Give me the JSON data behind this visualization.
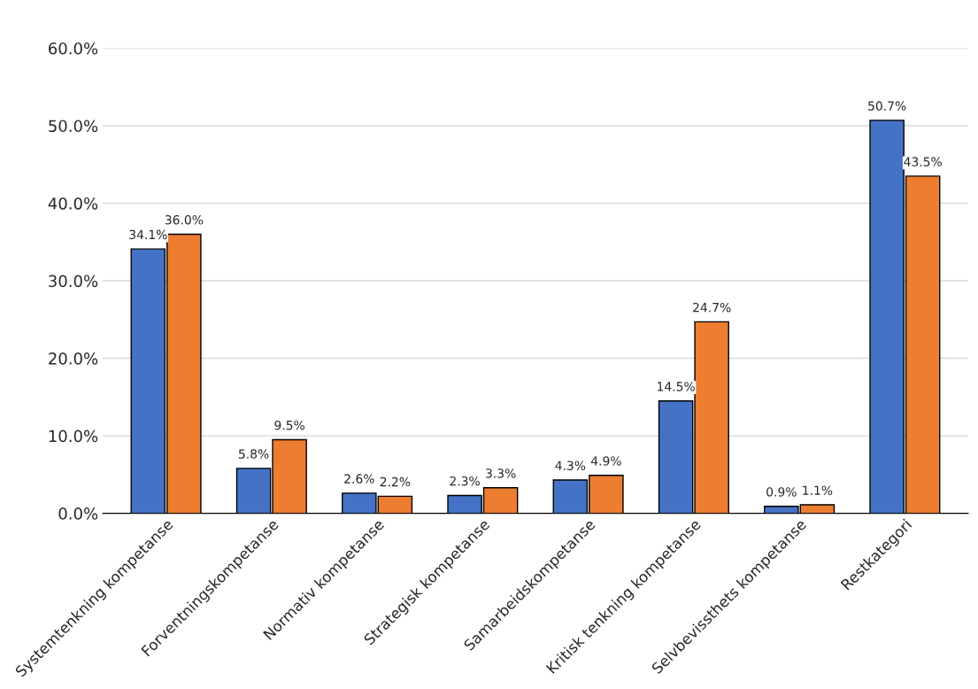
{
  "chart_data": {
    "type": "bar",
    "categories": [
      "Systemtenkning kompetanse",
      "Forventningskompetanse",
      "Normativ kompetanse",
      "Strategisk kompetanse",
      "Samarbeidskompetanse",
      "Kritisk tenkning kompetanse",
      "Selvbevissthets kompetanse",
      "Restkategori"
    ],
    "series": [
      {
        "color": "#4472c4",
        "values": [
          34.1,
          5.8,
          2.6,
          2.3,
          4.3,
          14.5,
          0.9,
          50.7
        ],
        "value_labels": [
          "34.1%",
          "5.8%",
          "2.6%",
          "2.3%",
          "4.3%",
          "14.5%",
          "0.9%",
          "50.7%"
        ]
      },
      {
        "color": "#ed7d31",
        "values": [
          36.0,
          9.5,
          2.2,
          3.3,
          4.9,
          24.7,
          1.1,
          43.5
        ],
        "value_labels": [
          "36.0%",
          "9.5%",
          "2.2%",
          "3.3%",
          "4.9%",
          "24.7%",
          "1.1%",
          "43.5%"
        ]
      }
    ],
    "ylim": [
      0,
      60
    ],
    "yticks": [
      {
        "value": 0,
        "label": "0.0%"
      },
      {
        "value": 10,
        "label": "10.0%"
      },
      {
        "value": 20,
        "label": "20.0%"
      },
      {
        "value": 30,
        "label": "30.0%"
      },
      {
        "value": 40,
        "label": "40.0%"
      },
      {
        "value": 50,
        "label": "50.0%"
      },
      {
        "value": 60,
        "label": "60.0%"
      }
    ],
    "grid": "y"
  }
}
